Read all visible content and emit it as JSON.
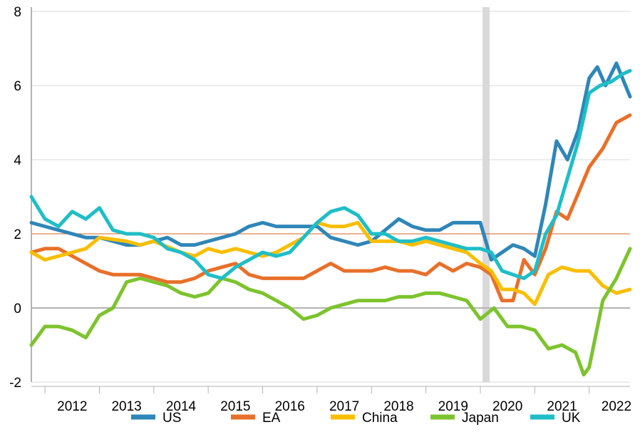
{
  "chart_data": {
    "type": "line",
    "title": "",
    "xlabel": "",
    "ylabel": "",
    "ylim": [
      -2,
      8
    ],
    "xlim": [
      2011.75,
      2022.75
    ],
    "yticks": [
      -2,
      0,
      2,
      4,
      6,
      8
    ],
    "yticklabels": [
      "-2",
      "0",
      "2",
      "4",
      "6",
      "8"
    ],
    "xticklabels": [
      "2012",
      "2013",
      "2014",
      "2015",
      "2016",
      "2017",
      "2018",
      "2019",
      "2020",
      "2021",
      "2022"
    ],
    "grid": "horizontal",
    "reference_line": {
      "y": 2,
      "color": "#d9641f"
    },
    "shaded_band": {
      "x": [
        2020.04,
        2020.17
      ],
      "color": "#d9d9d9"
    },
    "legend_position": "bottom",
    "series": [
      {
        "name": "US",
        "color": "#2f86b8",
        "x": [
          2011.75,
          2012.0,
          2012.5,
          2012.75,
          2013.0,
          2013.25,
          2013.5,
          2013.75,
          2014.0,
          2014.25,
          2014.5,
          2014.75,
          2015.0,
          2015.25,
          2015.5,
          2015.75,
          2016.0,
          2016.25,
          2016.5,
          2016.75,
          2017.0,
          2017.25,
          2017.5,
          2017.75,
          2018.0,
          2018.25,
          2018.5,
          2018.75,
          2019.0,
          2019.25,
          2019.5,
          2019.75,
          2020.0,
          2020.2,
          2020.4,
          2020.6,
          2020.8,
          2021.0,
          2021.2,
          2021.4,
          2021.6,
          2021.8,
          2022.0,
          2022.15,
          2022.3,
          2022.5,
          2022.75
        ],
        "y": [
          2.3,
          2.2,
          2.0,
          1.9,
          1.9,
          1.8,
          1.7,
          1.7,
          1.8,
          1.9,
          1.7,
          1.7,
          1.8,
          1.9,
          2.0,
          2.2,
          2.3,
          2.2,
          2.2,
          2.2,
          2.2,
          1.9,
          1.8,
          1.7,
          1.8,
          2.1,
          2.4,
          2.2,
          2.1,
          2.1,
          2.3,
          2.3,
          2.3,
          1.3,
          1.5,
          1.7,
          1.6,
          1.4,
          2.8,
          4.5,
          4.0,
          4.8,
          6.2,
          6.5,
          6.0,
          6.6,
          5.7
        ]
      },
      {
        "name": "EA",
        "color": "#e8702a",
        "x": [
          2011.75,
          2012.0,
          2012.25,
          2012.5,
          2012.75,
          2013.0,
          2013.25,
          2013.5,
          2013.75,
          2014.0,
          2014.25,
          2014.5,
          2014.75,
          2015.0,
          2015.25,
          2015.5,
          2015.75,
          2016.0,
          2016.25,
          2016.5,
          2016.75,
          2017.0,
          2017.25,
          2017.5,
          2017.75,
          2018.0,
          2018.25,
          2018.5,
          2018.75,
          2019.0,
          2019.25,
          2019.5,
          2019.75,
          2020.0,
          2020.2,
          2020.4,
          2020.6,
          2020.8,
          2021.0,
          2021.2,
          2021.4,
          2021.6,
          2021.8,
          2022.0,
          2022.25,
          2022.5,
          2022.75
        ],
        "y": [
          1.5,
          1.6,
          1.6,
          1.4,
          1.2,
          1.0,
          0.9,
          0.9,
          0.9,
          0.8,
          0.7,
          0.7,
          0.8,
          1.0,
          1.1,
          1.2,
          0.9,
          0.8,
          0.8,
          0.8,
          0.8,
          1.0,
          1.2,
          1.0,
          1.0,
          1.0,
          1.1,
          1.0,
          1.0,
          0.9,
          1.2,
          1.0,
          1.2,
          1.1,
          0.9,
          0.2,
          0.2,
          1.3,
          0.9,
          1.6,
          2.6,
          2.4,
          3.1,
          3.8,
          4.3,
          5.0,
          5.2
        ]
      },
      {
        "name": "China",
        "color": "#f9be00",
        "x": [
          2011.75,
          2012.0,
          2012.5,
          2012.75,
          2013.0,
          2013.5,
          2013.75,
          2014.0,
          2014.5,
          2014.75,
          2015.0,
          2015.25,
          2015.5,
          2015.75,
          2016.0,
          2016.25,
          2016.5,
          2016.75,
          2017.0,
          2017.25,
          2017.5,
          2017.75,
          2018.0,
          2018.25,
          2018.5,
          2018.75,
          2019.0,
          2019.25,
          2019.5,
          2019.75,
          2020.0,
          2020.2,
          2020.4,
          2020.6,
          2020.8,
          2021.0,
          2021.25,
          2021.5,
          2021.75,
          2022.0,
          2022.25,
          2022.5,
          2022.75
        ],
        "y": [
          1.5,
          1.3,
          1.5,
          1.6,
          1.9,
          1.8,
          1.7,
          1.8,
          1.5,
          1.4,
          1.6,
          1.5,
          1.6,
          1.5,
          1.4,
          1.5,
          1.7,
          1.9,
          2.3,
          2.2,
          2.2,
          2.3,
          1.8,
          1.8,
          1.8,
          1.7,
          1.8,
          1.7,
          1.6,
          1.5,
          1.2,
          1.0,
          0.5,
          0.5,
          0.4,
          0.1,
          0.9,
          1.1,
          1.0,
          1.0,
          0.6,
          0.4,
          0.5
        ]
      },
      {
        "name": "Japan",
        "color": "#7dc32e",
        "x": [
          2011.75,
          2012.0,
          2012.25,
          2012.5,
          2012.75,
          2013.0,
          2013.25,
          2013.5,
          2013.75,
          2014.0,
          2014.25,
          2014.5,
          2014.75,
          2015.0,
          2015.25,
          2015.5,
          2015.75,
          2016.0,
          2016.25,
          2016.5,
          2016.75,
          2017.0,
          2017.25,
          2017.5,
          2017.75,
          2018.0,
          2018.25,
          2018.5,
          2018.75,
          2019.0,
          2019.25,
          2019.5,
          2019.75,
          2020.0,
          2020.25,
          2020.5,
          2020.75,
          2021.0,
          2021.25,
          2021.5,
          2021.75,
          2021.9,
          2022.0,
          2022.25,
          2022.5,
          2022.75
        ],
        "y": [
          -1.0,
          -0.5,
          -0.5,
          -0.6,
          -0.8,
          -0.2,
          0.0,
          0.7,
          0.8,
          0.7,
          0.6,
          0.4,
          0.3,
          0.4,
          0.8,
          0.7,
          0.5,
          0.4,
          0.2,
          0.0,
          -0.3,
          -0.2,
          0.0,
          0.1,
          0.2,
          0.2,
          0.2,
          0.3,
          0.3,
          0.4,
          0.4,
          0.3,
          0.2,
          -0.3,
          0.0,
          -0.5,
          -0.5,
          -0.6,
          -1.1,
          -1.0,
          -1.2,
          -1.8,
          -1.6,
          0.2,
          0.8,
          1.6
        ]
      },
      {
        "name": "UK",
        "color": "#1fbec7",
        "x": [
          2011.75,
          2012.0,
          2012.25,
          2012.5,
          2012.75,
          2013.0,
          2013.25,
          2013.5,
          2013.75,
          2014.0,
          2014.25,
          2014.5,
          2014.75,
          2015.0,
          2015.25,
          2015.5,
          2015.75,
          2016.0,
          2016.25,
          2016.5,
          2016.75,
          2017.0,
          2017.25,
          2017.5,
          2017.75,
          2018.0,
          2018.25,
          2018.5,
          2018.75,
          2019.0,
          2019.25,
          2019.5,
          2019.75,
          2020.0,
          2020.2,
          2020.4,
          2020.6,
          2020.8,
          2021.0,
          2021.2,
          2021.4,
          2021.6,
          2021.8,
          2022.0,
          2022.2,
          2022.4,
          2022.6,
          2022.75
        ],
        "y": [
          3.0,
          2.4,
          2.2,
          2.6,
          2.4,
          2.7,
          2.1,
          2.0,
          2.0,
          1.9,
          1.6,
          1.5,
          1.3,
          0.9,
          0.8,
          1.1,
          1.3,
          1.5,
          1.4,
          1.5,
          1.9,
          2.3,
          2.6,
          2.7,
          2.5,
          2.0,
          2.0,
          1.8,
          1.8,
          1.9,
          1.8,
          1.7,
          1.6,
          1.6,
          1.5,
          1.0,
          0.9,
          0.8,
          1.0,
          2.0,
          2.5,
          3.5,
          4.5,
          5.8,
          6.0,
          6.1,
          6.3,
          6.4
        ]
      }
    ]
  }
}
